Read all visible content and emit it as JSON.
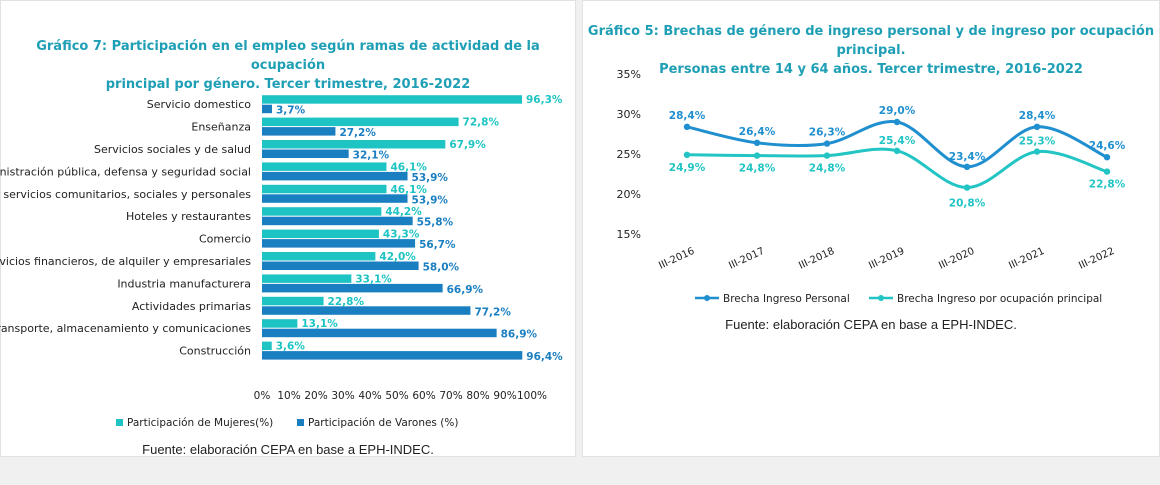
{
  "colors": {
    "women": "#1ec4c4",
    "men": "#1a7fc1",
    "title": "#1f9fb5",
    "line_personal": "#1f8fcf",
    "line_occupation": "#22c4c4"
  },
  "left": {
    "title_line1": "Gráfico 7: Participación en el empleo según ramas de actividad de la ocupación",
    "title_line2": "principal por género. Tercer trimestre, 2016-2022",
    "source": "Fuente: elaboración CEPA en base a EPH-INDEC."
  },
  "right": {
    "title_line1": "Gráfico 5: Brechas de género de ingreso personal y de ingreso por ocupación principal.",
    "title_line2": "Personas entre 14 y 64 años. Tercer trimestre, 2016-2022",
    "source": "Fuente: elaboración CEPA en base a EPH-INDEC."
  },
  "chart_data": [
    {
      "type": "bar",
      "orientation": "horizontal",
      "categories": [
        "Servicio domestico",
        "Enseñanza",
        "Servicios sociales y de salud",
        "Administración pública, defensa y seguridad social",
        "Otros servicios comunitarios, sociales y personales",
        "Hoteles y restaurantes",
        "Comercio",
        "Servicios financieros, de alquiler y empresariales",
        "Industria manufacturera",
        "Actividades primarias",
        "Transporte, almacenamiento y comunicaciones",
        "Construcción"
      ],
      "series": [
        {
          "name": "Participación de Mujeres(%)",
          "values": [
            96.3,
            72.8,
            67.9,
            46.1,
            46.1,
            44.2,
            43.3,
            42.0,
            33.1,
            22.8,
            13.1,
            3.6
          ],
          "labels": [
            "96,3%",
            "72,8%",
            "67,9%",
            "46,1%",
            "46,1%",
            "44,2%",
            "43,3%",
            "42,0%",
            "33,1%",
            "22,8%",
            "13,1%",
            "3,6%"
          ]
        },
        {
          "name": "Participación de Varones (%)",
          "values": [
            3.7,
            27.2,
            32.1,
            53.9,
            53.9,
            55.8,
            56.7,
            58.0,
            66.9,
            77.2,
            86.9,
            96.4
          ],
          "labels": [
            "3,7%",
            "27,2%",
            "32,1%",
            "53,9%",
            "53,9%",
            "55,8%",
            "56,7%",
            "58,0%",
            "66,9%",
            "77,2%",
            "86,9%",
            "96,4%"
          ]
        }
      ],
      "x_ticks": [
        "0%",
        "10%",
        "20%",
        "30%",
        "40%",
        "50%",
        "60%",
        "70%",
        "80%",
        "90%",
        "100%"
      ],
      "xlim": [
        0,
        100
      ],
      "grid": false,
      "legend": "bottom"
    },
    {
      "type": "line",
      "categories": [
        "III-2016",
        "III-2017",
        "III-2018",
        "III-2019",
        "III-2020",
        "III-2021",
        "III-2022"
      ],
      "series": [
        {
          "name": "Brecha Ingreso Personal",
          "values": [
            28.4,
            26.4,
            26.3,
            29.0,
            23.4,
            28.4,
            24.6
          ],
          "labels": [
            "28,4%",
            "26,4%",
            "26,3%",
            "29,0%",
            "23,4%",
            "28,4%",
            "24,6%"
          ]
        },
        {
          "name": "Brecha Ingreso por ocupación principal",
          "values": [
            24.9,
            24.8,
            24.8,
            25.4,
            20.8,
            25.3,
            22.8
          ],
          "labels": [
            "24,9%",
            "24,8%",
            "24,8%",
            "25,4%",
            "20,8%",
            "25,3%",
            "22,8%"
          ]
        }
      ],
      "y_ticks": [
        "35%",
        "30%",
        "25%",
        "20%",
        "15%"
      ],
      "ylim": [
        15,
        35
      ],
      "grid": false,
      "legend": "bottom"
    }
  ]
}
